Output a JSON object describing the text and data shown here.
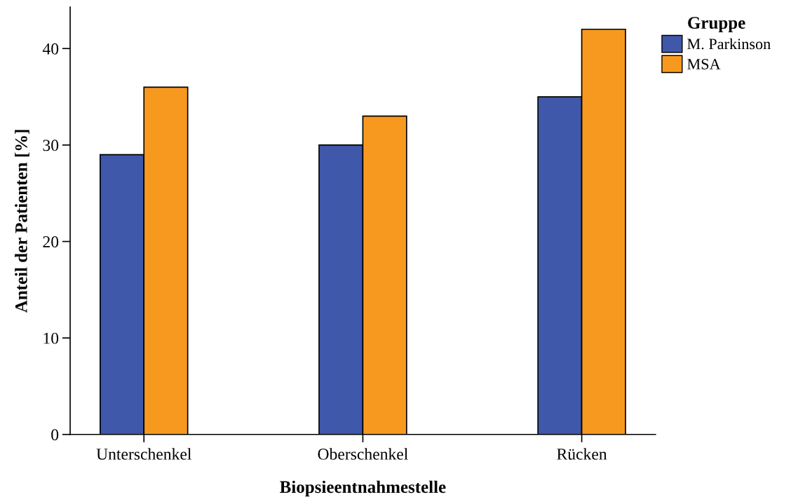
{
  "chart_data": {
    "type": "bar",
    "xlabel": "Biopsieentnahmestelle",
    "ylabel": "Anteil der Patienten [%]",
    "legend_title": "Gruppe",
    "categories": [
      "Unterschenkel",
      "Oberschenkel",
      "Rücken"
    ],
    "series": [
      {
        "name": "M. Parkinson",
        "color": "#3f58a9",
        "values": [
          29,
          30,
          35
        ]
      },
      {
        "name": "MSA",
        "color": "#f7991f",
        "values": [
          36,
          33,
          42
        ]
      }
    ],
    "ylim": [
      0,
      44.3
    ],
    "yticks": [
      0,
      10,
      20,
      30,
      40
    ],
    "grid": false,
    "legend": "top right"
  }
}
